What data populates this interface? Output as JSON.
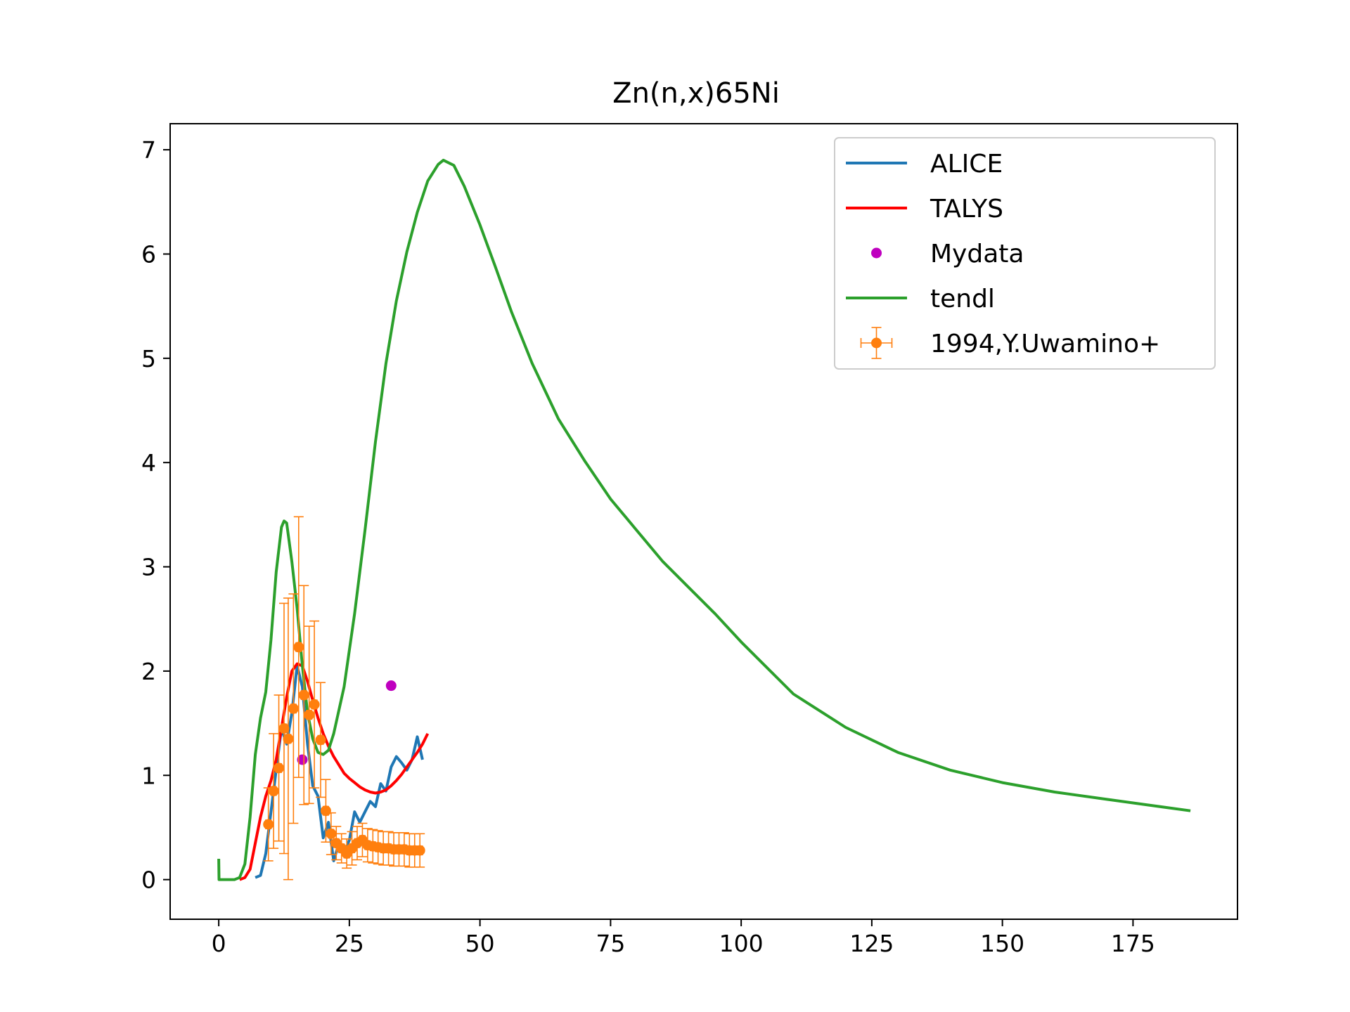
{
  "chart_data": {
    "type": "line",
    "title": "Zn(n,x)65Ni",
    "xlabel": "",
    "ylabel": "",
    "xlim": [
      -9.3,
      195
    ],
    "ylim": [
      -0.38,
      7.25
    ],
    "xticks": [
      0,
      25,
      50,
      75,
      100,
      125,
      150,
      175
    ],
    "yticks": [
      0,
      1,
      2,
      3,
      4,
      5,
      6,
      7
    ],
    "grid": false,
    "legend_position": "top-right",
    "series": [
      {
        "name": "ALICE",
        "kind": "line",
        "color": "#1f77b4",
        "x": [
          7,
          8,
          9,
          10,
          11,
          12,
          13,
          14,
          15,
          16,
          17,
          18,
          19,
          20,
          21,
          22,
          23,
          24,
          25,
          26,
          27,
          28,
          29,
          30,
          31,
          32,
          33,
          34,
          35,
          36,
          37,
          38,
          39
        ],
        "y": [
          0.02,
          0.04,
          0.25,
          0.65,
          1.05,
          1.45,
          1.3,
          1.6,
          2.05,
          1.85,
          1.3,
          0.9,
          0.8,
          0.4,
          0.55,
          0.18,
          0.35,
          0.25,
          0.38,
          0.65,
          0.55,
          0.65,
          0.75,
          0.7,
          0.92,
          0.85,
          1.08,
          1.18,
          1.12,
          1.05,
          1.15,
          1.37,
          1.15
        ]
      },
      {
        "name": "TALYS",
        "kind": "line",
        "color": "#ff0000",
        "x": [
          4,
          5,
          6,
          7,
          8,
          9,
          10,
          11,
          12,
          13,
          14,
          15,
          16,
          17,
          18,
          19,
          20,
          21,
          22,
          23,
          24,
          25,
          26,
          27,
          28,
          29,
          30,
          31,
          32,
          33,
          34,
          35,
          36,
          37,
          38,
          39,
          40
        ],
        "y": [
          0,
          0.02,
          0.1,
          0.35,
          0.6,
          0.8,
          0.95,
          1.15,
          1.45,
          1.75,
          2.0,
          2.07,
          2.05,
          1.9,
          1.72,
          1.55,
          1.4,
          1.28,
          1.18,
          1.1,
          1.02,
          0.97,
          0.93,
          0.89,
          0.86,
          0.84,
          0.83,
          0.84,
          0.86,
          0.9,
          0.95,
          1.01,
          1.08,
          1.15,
          1.22,
          1.3,
          1.4
        ]
      },
      {
        "name": "Mydata",
        "kind": "scatter",
        "color": "#bf00bf",
        "x": [
          16,
          33
        ],
        "y": [
          1.15,
          1.86
        ]
      },
      {
        "name": "tendl",
        "kind": "line",
        "color": "#2ca02c",
        "x": [
          0,
          0.05,
          1,
          2,
          3,
          4,
          5,
          6,
          7,
          8,
          9,
          10,
          11,
          12,
          12.5,
          13,
          14,
          15,
          16,
          17,
          18,
          19,
          20,
          21,
          22,
          24,
          26,
          28,
          30,
          32,
          34,
          36,
          38,
          40,
          42,
          43,
          45,
          47,
          50,
          53,
          56,
          60,
          65,
          70,
          75,
          80,
          85,
          90,
          95,
          100,
          110,
          120,
          130,
          140,
          150,
          160,
          170,
          186
        ],
        "y": [
          0.2,
          0,
          0,
          0,
          0,
          0.02,
          0.15,
          0.6,
          1.2,
          1.55,
          1.8,
          2.3,
          2.95,
          3.38,
          3.44,
          3.42,
          3.05,
          2.6,
          2.05,
          1.6,
          1.35,
          1.22,
          1.2,
          1.24,
          1.4,
          1.85,
          2.55,
          3.35,
          4.2,
          4.95,
          5.55,
          6.02,
          6.4,
          6.7,
          6.86,
          6.9,
          6.85,
          6.65,
          6.28,
          5.87,
          5.45,
          4.95,
          4.42,
          4.02,
          3.65,
          3.35,
          3.05,
          2.8,
          2.55,
          2.28,
          1.78,
          1.46,
          1.22,
          1.05,
          0.93,
          0.84,
          0.77,
          0.66
        ]
      },
      {
        "name": "1994,Y.Uwamino+",
        "kind": "errorbar",
        "color": "#ff7f0e",
        "x": [
          9.5,
          10.5,
          11.5,
          12.5,
          13.3,
          14.3,
          15.3,
          16.3,
          17.3,
          18.3,
          19.5,
          20.5,
          21.5,
          22.5,
          23.5,
          24.5,
          25.5,
          26.5,
          27.5,
          28.5,
          29.5,
          30.5,
          31.5,
          32.5,
          33.5,
          34.5,
          35.5,
          36.5,
          37.5,
          38.5
        ],
        "y": [
          0.53,
          0.85,
          1.07,
          1.45,
          1.35,
          1.64,
          2.23,
          1.77,
          1.58,
          1.68,
          1.34,
          0.66,
          0.44,
          0.35,
          0.3,
          0.25,
          0.3,
          0.35,
          0.38,
          0.33,
          0.32,
          0.31,
          0.3,
          0.3,
          0.29,
          0.29,
          0.29,
          0.28,
          0.28,
          0.28
        ],
        "yerr": [
          0.35,
          0.55,
          0.7,
          1.2,
          1.35,
          1.1,
          1.25,
          1.05,
          0.85,
          0.8,
          0.55,
          0.3,
          0.2,
          0.16,
          0.14,
          0.14,
          0.16,
          0.16,
          0.16,
          0.16,
          0.16,
          0.16,
          0.16,
          0.16,
          0.16,
          0.16,
          0.16,
          0.16,
          0.16,
          0.16
        ],
        "xerr": [
          0.5,
          0.5,
          0.5,
          0.5,
          0.5,
          0.5,
          0.5,
          0.5,
          0.5,
          0.5,
          0.5,
          0.5,
          0.5,
          0.5,
          0.5,
          0.5,
          0.5,
          0.5,
          0.5,
          0.5,
          0.5,
          0.5,
          0.5,
          0.5,
          0.5,
          0.5,
          0.5,
          0.5,
          0.5,
          0.5
        ]
      }
    ]
  }
}
